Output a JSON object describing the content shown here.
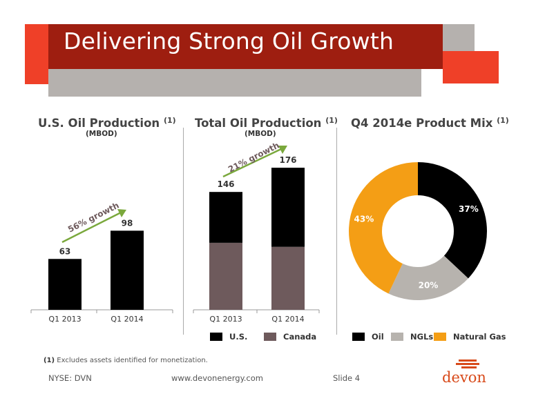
{
  "header": {
    "title": "Delivering Strong Oil Growth"
  },
  "colors": {
    "dark_red": "#9e1e10",
    "bright_red": "#ef4028",
    "grey_band": "#b5b1ae",
    "oil": "#000000",
    "canada": "#6e5a5c",
    "ngls": "#b7b3ae",
    "natural_gas": "#f49e15",
    "growth_arrow": "#7aa83c"
  },
  "chart_data": [
    {
      "type": "bar",
      "title": "U.S. Oil Production",
      "title_note": "(1)",
      "unit": "(MBOD)",
      "categories": [
        "Q1 2013",
        "Q1 2014"
      ],
      "values": [
        63,
        98
      ],
      "data_labels": [
        "63",
        "98"
      ],
      "annotation": "56% growth"
    },
    {
      "type": "bar",
      "stacked": true,
      "title": "Total Oil Production",
      "title_note": "(1)",
      "unit": "(MBOD)",
      "categories": [
        "Q1 2013",
        "Q1 2014"
      ],
      "series": [
        {
          "name": "U.S.",
          "values": [
            63,
            98
          ]
        },
        {
          "name": "Canada",
          "values": [
            83,
            78
          ]
        }
      ],
      "totals": [
        "146",
        "176"
      ],
      "annotation": "21% growth",
      "legend": [
        "U.S.",
        "Canada"
      ]
    },
    {
      "type": "pie",
      "donut": true,
      "title": "Q4 2014e Product Mix",
      "title_note": "(1)",
      "slices": [
        {
          "name": "Oil",
          "value": 37,
          "label": "37%"
        },
        {
          "name": "NGLs",
          "value": 20,
          "label": "20%"
        },
        {
          "name": "Natural Gas",
          "value": 43,
          "label": "43%"
        }
      ],
      "legend": [
        "Oil",
        "NGLs",
        "Natural Gas"
      ]
    }
  ],
  "footnote": {
    "marker": "(1)",
    "text": "Excludes assets identified for monetization."
  },
  "footer": {
    "ticker": "NYSE: DVN",
    "website": "www.devonenergy.com",
    "slide": "Slide 4",
    "logo": "devon"
  }
}
